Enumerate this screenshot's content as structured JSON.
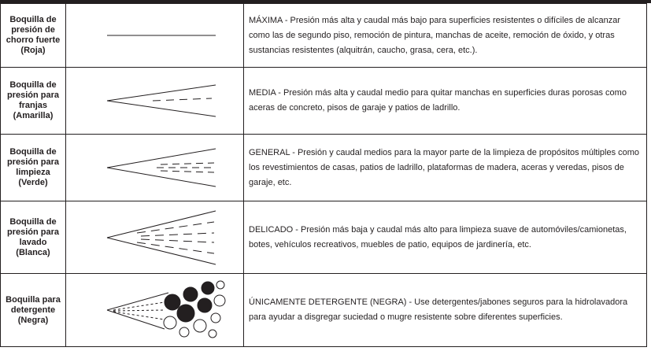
{
  "rows": [
    {
      "name": [
        "Boquilla de",
        "presión de",
        "chorro fuerte",
        "(Roja)"
      ],
      "description": "MÁXIMA - Presión más alta y caudal más bajo para superficies resistentes o difíciles de alcanzar como las de segundo piso, remoción de pintura, manchas de aceite, remoción de óxido, y otras sustancias resistentes (alquitrán, caucho, grasa, cera, etc.)."
    },
    {
      "name": [
        "Boquilla de",
        "presión para",
        "franjas",
        "(Amarilla)"
      ],
      "description": "MEDIA - Presión más alta y caudal medio para quitar manchas en superficies duras porosas como aceras de concreto, pisos de garaje y patios de ladrillo."
    },
    {
      "name": [
        "Boquilla de",
        "presión para",
        "limpieza",
        "(Verde)"
      ],
      "description": "GENERAL - Presión y caudal medios para la mayor parte de la limpieza de propósitos múltiples como los revestimientos de casas, patios de ladrillo, plataformas de madera, aceras y veredas, pisos de garaje, etc."
    },
    {
      "name": [
        "Boquilla de",
        "presión para",
        "lavado",
        "(Blanca)"
      ],
      "description": "DELICADO - Presión más baja y caudal más alto para limpieza suave de automóviles/camionetas, botes, vehículos recreativos, muebles de patio, equipos de jardinería, etc."
    },
    {
      "name": [
        "Boquilla para",
        "detergente",
        "(Negra)"
      ],
      "description": "ÚNICAMENTE DETERGENTE (NEGRA) - Use detergentes/jabones seguros para la hidrolavadora para ayudar a disgregar suciedad o mugre resistente sobre diferentes superficies."
    }
  ]
}
